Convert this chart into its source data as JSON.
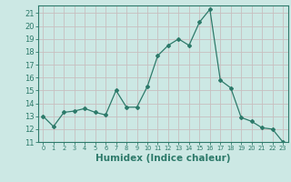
{
  "x": [
    0,
    1,
    2,
    3,
    4,
    5,
    6,
    7,
    8,
    9,
    10,
    11,
    12,
    13,
    14,
    15,
    16,
    17,
    18,
    19,
    20,
    21,
    22,
    23
  ],
  "y": [
    13.0,
    12.2,
    13.3,
    13.4,
    13.6,
    13.3,
    13.1,
    15.0,
    13.7,
    13.7,
    15.3,
    17.7,
    18.5,
    19.0,
    18.5,
    20.3,
    21.3,
    15.8,
    15.2,
    12.9,
    12.6,
    12.1,
    12.0,
    11.0
  ],
  "line_color": "#2d7a6a",
  "marker": "D",
  "marker_size": 2.0,
  "linewidth": 0.9,
  "bg_color": "#cce8e4",
  "grid_color": "#c8bfbf",
  "tick_color": "#2d7a6a",
  "xlabel": "Humidex (Indice chaleur)",
  "xlabel_fontsize": 7.5,
  "ylabel_ticks": [
    11,
    12,
    13,
    14,
    15,
    16,
    17,
    18,
    19,
    20,
    21
  ],
  "xlim": [
    -0.5,
    23.5
  ],
  "ylim": [
    11,
    21.6
  ],
  "xtick_labels": [
    "0",
    "1",
    "2",
    "3",
    "4",
    "5",
    "6",
    "7",
    "8",
    "9",
    "10",
    "11",
    "12",
    "13",
    "14",
    "15",
    "16",
    "17",
    "18",
    "19",
    "20",
    "21",
    "22",
    "23"
  ]
}
